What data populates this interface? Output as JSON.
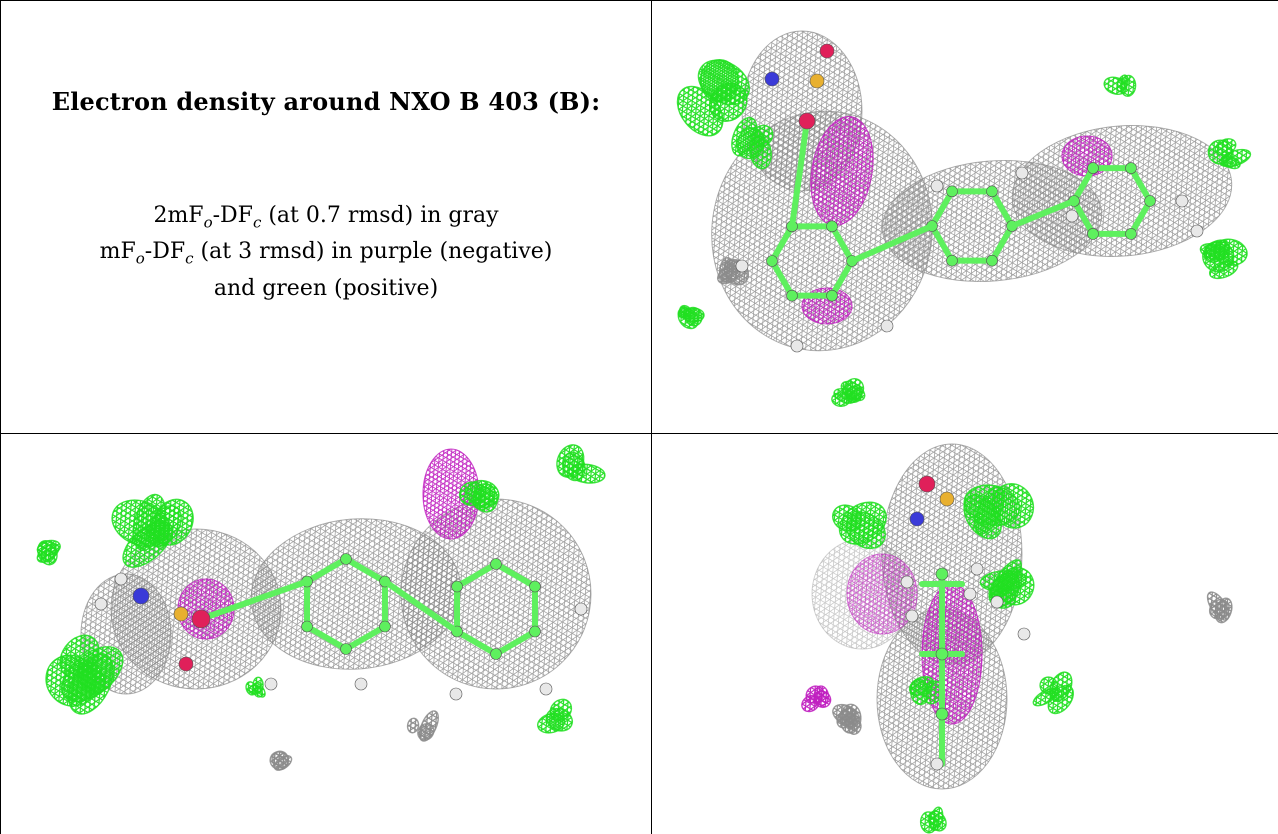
{
  "caption": {
    "title": "Electron density around NXO B 403 (B):",
    "line1": {
      "pre": "2mF",
      "sub1": "o",
      "mid": "-DF",
      "sub2": "c",
      "post": " (at 0.7 rmsd) in gray"
    },
    "line2": {
      "pre": "mF",
      "sub1": "o",
      "mid": "-DF",
      "sub2": "c",
      "post": " (at 3 rmsd) in purple (negative)"
    },
    "line3": "and green (positive)"
  },
  "colors": {
    "density_2fofc": "#8c8c8c",
    "density_negative": "#c020c0",
    "density_positive": "#22e022",
    "carbon": "#5ef05e",
    "hydrogen": "#e8e8e8",
    "nitrogen": "#3a3ad8",
    "oxygen": "#e0205a",
    "sulfur": "#e8b030",
    "border": "#000000"
  },
  "panels": [
    {
      "view": "view-1"
    },
    {
      "view": "view-2"
    },
    {
      "view": "view-3"
    }
  ]
}
